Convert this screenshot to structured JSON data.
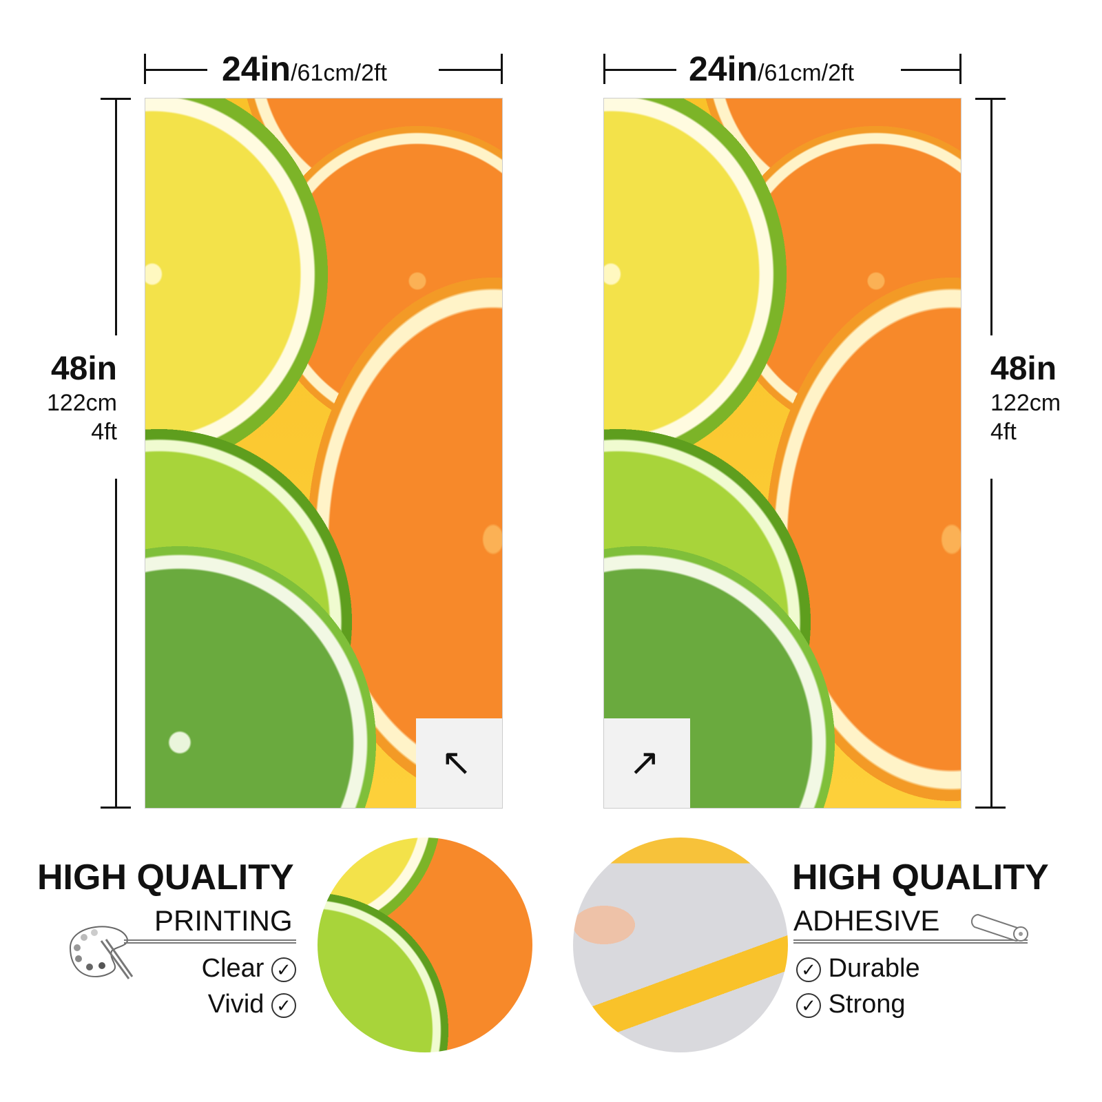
{
  "panels": [
    {
      "width": {
        "main": "24in",
        "sub": "/61cm/2ft"
      },
      "height": {
        "main": "48in",
        "cm": "122cm",
        "ft": "4ft"
      },
      "peel_corner": "bottom-right"
    },
    {
      "width": {
        "main": "24in",
        "sub": "/61cm/2ft"
      },
      "height": {
        "main": "48in",
        "cm": "122cm",
        "ft": "4ft"
      },
      "peel_corner": "bottom-left"
    }
  ],
  "printing": {
    "title": "HIGH QUALITY",
    "subtitle": "PRINTING",
    "icon": "palette-icon",
    "features": [
      "Clear",
      "Vivid"
    ]
  },
  "adhesive": {
    "title": "HIGH QUALITY",
    "subtitle": "ADHESIVE",
    "icon": "roll-icon",
    "features": [
      "Durable",
      "Strong"
    ]
  },
  "colors": {
    "orange": "#f7892a",
    "lime": "#7fbf3a",
    "lemon": "#f3e24a",
    "background": "#fdd03a"
  }
}
